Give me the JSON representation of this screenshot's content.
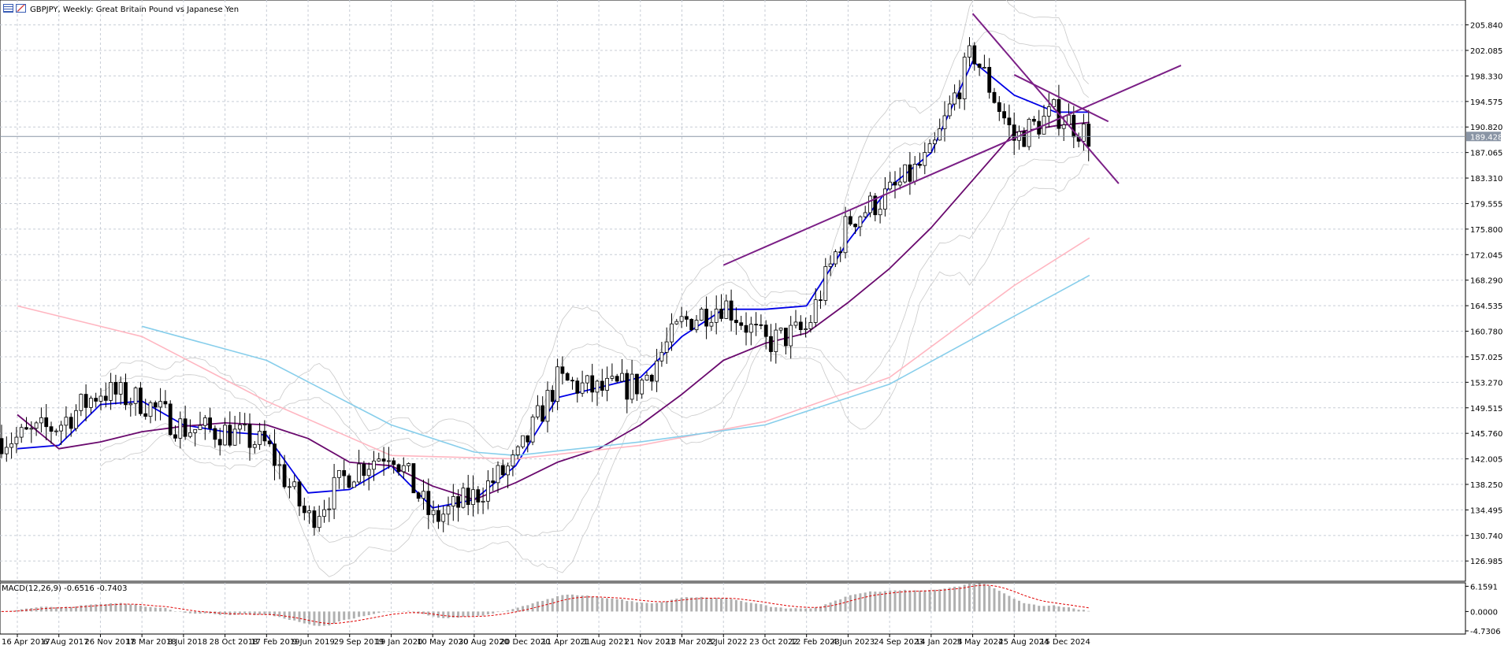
{
  "header": {
    "title": "GBPJPY, Weekly:  Great Britain Pound vs Japanese Yen",
    "icons": [
      "chart-grid-icon",
      "chart-table-icon"
    ]
  },
  "colors": {
    "grid": "#c8cdd6",
    "candle": "#000000",
    "ma_fast": "#0000e6",
    "ma_mid": "#6a0a6e",
    "ma_slow_pink": "#ffb6c1",
    "ma_slow_blue": "#87ceeb",
    "bollinger": "#c9c9c9",
    "trendline": "#7b1f86",
    "macd_hist": "#b0b0b0",
    "macd_signal": "#e00000",
    "current_price_bg": "#8a95a5"
  },
  "current_price": {
    "value": 189.428,
    "label": "189.428"
  },
  "chart_data": [
    {
      "type": "candlestick",
      "title": "GBPJPY, Weekly:  Great Britain Pound vs Japanese Yen",
      "xlabel": "",
      "ylabel": "",
      "x_tick_labels": [
        "16 Apr 2017",
        "6 Aug 2017",
        "26 Nov 2017",
        "18 Mar 2018",
        "8 Jul 2018",
        "28 Oct 2018",
        "17 Feb 2019",
        "9 Jun 2019",
        "29 Sep 2019",
        "19 Jan 2020",
        "10 May 2020",
        "30 Aug 2020",
        "20 Dec 2020",
        "11 Apr 2021",
        "1 Aug 2021",
        "21 Nov 2021",
        "13 Mar 2022",
        "3 Jul 2022",
        "23 Oct 2022",
        "12 Feb 2023",
        "4 Jun 2023",
        "24 Sep 2023",
        "14 Jan 2024",
        "5 May 2024",
        "25 Aug 2024",
        "15 Dec 2024"
      ],
      "y_tick_labels": [
        "205.840",
        "202.085",
        "198.330",
        "194.575",
        "190.820",
        "187.065",
        "183.310",
        "179.555",
        "175.800",
        "172.045",
        "168.290",
        "164.535",
        "160.780",
        "157.025",
        "153.270",
        "149.515",
        "145.760",
        "142.005",
        "138.250",
        "134.495",
        "130.740",
        "126.985"
      ],
      "ylim": [
        124.0,
        209.5
      ],
      "price_anchors": {
        "x": [
          "16 Apr 2017",
          "6 Aug 2017",
          "26 Nov 2017",
          "18 Mar 2018",
          "8 Jul 2018",
          "28 Oct 2018",
          "17 Feb 2019",
          "9 Jun 2019",
          "29 Sep 2019",
          "19 Jan 2020",
          "10 May 2020",
          "30 Aug 2020",
          "20 Dec 2020",
          "11 Apr 2021",
          "1 Aug 2021",
          "21 Nov 2021",
          "13 Mar 2022",
          "3 Jul 2022",
          "23 Oct 2022",
          "12 Feb 2023",
          "4 Jun 2023",
          "24 Sep 2023",
          "14 Jan 2024",
          "5 May 2024",
          "25 Aug 2024",
          "15 Dec 2024",
          "16 Mar 2025"
        ],
        "close": [
          145.0,
          147.0,
          152.0,
          150.5,
          146.5,
          146.0,
          144.0,
          133.0,
          140.0,
          143.5,
          133.0,
          136.5,
          141.5,
          153.5,
          152.0,
          153.0,
          162.0,
          165.0,
          159.0,
          161.0,
          177.0,
          181.0,
          186.5,
          202.0,
          189.0,
          193.0,
          189.428
        ]
      },
      "series": [
        {
          "name": "MA fast",
          "color": "#0000e6",
          "x": [
            "16 Apr 2017",
            "6 Aug 2017",
            "26 Nov 2017",
            "18 Mar 2018",
            "8 Jul 2018",
            "28 Oct 2018",
            "17 Feb 2019",
            "9 Jun 2019",
            "29 Sep 2019",
            "19 Jan 2020",
            "10 May 2020",
            "30 Aug 2020",
            "20 Dec 2020",
            "11 Apr 2021",
            "1 Aug 2021",
            "21 Nov 2021",
            "13 Mar 2022",
            "3 Jul 2022",
            "23 Oct 2022",
            "12 Feb 2023",
            "4 Jun 2023",
            "24 Sep 2023",
            "14 Jan 2024",
            "5 May 2024",
            "25 Aug 2024",
            "15 Dec 2024",
            "16 Mar 2025"
          ],
          "values": [
            143.5,
            144.0,
            150.0,
            150.5,
            147.0,
            146.0,
            145.5,
            137.0,
            137.5,
            141.0,
            134.8,
            136.0,
            141.0,
            151.0,
            152.5,
            154.0,
            160.0,
            164.0,
            164.0,
            164.5,
            174.0,
            182.0,
            187.0,
            200.5,
            195.5,
            193.0,
            193.0
          ]
        },
        {
          "name": "MA mid",
          "color": "#6a0a6e",
          "x": [
            "16 Apr 2017",
            "6 Aug 2017",
            "26 Nov 2017",
            "18 Mar 2018",
            "8 Jul 2018",
            "28 Oct 2018",
            "17 Feb 2019",
            "9 Jun 2019",
            "29 Sep 2019",
            "19 Jan 2020",
            "10 May 2020",
            "30 Aug 2020",
            "20 Dec 2020",
            "11 Apr 2021",
            "1 Aug 2021",
            "21 Nov 2021",
            "13 Mar 2022",
            "3 Jul 2022",
            "23 Oct 2022",
            "12 Feb 2023",
            "4 Jun 2023",
            "24 Sep 2023",
            "14 Jan 2024",
            "5 May 2024",
            "25 Aug 2024",
            "15 Dec 2024",
            "16 Mar 2025"
          ],
          "values": [
            148.5,
            143.5,
            144.5,
            146.0,
            146.8,
            147.3,
            147.0,
            145.0,
            141.5,
            141.0,
            138.0,
            136.0,
            138.5,
            141.5,
            143.5,
            147.0,
            151.5,
            156.5,
            159.0,
            160.5,
            165.0,
            170.0,
            176.0,
            183.0,
            190.0,
            191.0,
            191.5
          ]
        },
        {
          "name": "MA slow 1",
          "color": "#ffb6c1",
          "x": [
            "16 Apr 2017",
            "18 Mar 2018",
            "17 Feb 2019",
            "19 Jan 2020",
            "20 Dec 2020",
            "21 Nov 2021",
            "23 Oct 2022",
            "24 Sep 2023",
            "25 Aug 2024",
            "16 Mar 2025"
          ],
          "values": [
            164.5,
            160.0,
            150.5,
            142.5,
            142.0,
            144.0,
            147.5,
            154.0,
            167.5,
            174.5
          ]
        },
        {
          "name": "MA slow 2",
          "color": "#87ceeb",
          "x": [
            "18 Mar 2018",
            "17 Feb 2019",
            "19 Jan 2020",
            "30 Aug 2020",
            "20 Dec 2020",
            "21 Nov 2021",
            "23 Oct 2022",
            "24 Sep 2023",
            "25 Aug 2024",
            "16 Mar 2025"
          ],
          "values": [
            161.5,
            156.5,
            147.0,
            143.0,
            142.5,
            144.5,
            147.0,
            153.0,
            163.0,
            169.0
          ]
        }
      ],
      "trendlines": [
        {
          "name": "upper-descending",
          "from": [
            "5 May 2024",
            207.5
          ],
          "to": [
            "16 Mar 2025",
            187.5
          ]
        },
        {
          "name": "lower-ascending",
          "from": [
            "3 Jul 2022",
            170.5
          ],
          "to": [
            "16 Mar 2025",
            194.0
          ]
        },
        {
          "name": "top-trendline",
          "from": [
            "25 Aug 2024",
            198.5
          ],
          "to": [
            "16 Mar 2025",
            193.0
          ]
        }
      ],
      "grid": true,
      "legend": "none"
    },
    {
      "type": "histogram",
      "title": "MACD(12,26,9) -0.6516 -0.7403",
      "y_tick_labels": [
        "6.1591",
        "0.0000",
        "-4.7306"
      ],
      "ylim": [
        -5.5,
        7.0
      ],
      "values_hint": "macd oscillator",
      "grid": false
    }
  ],
  "macd": {
    "label": "MACD(12,26,9) -0.6516 -0.7403"
  }
}
